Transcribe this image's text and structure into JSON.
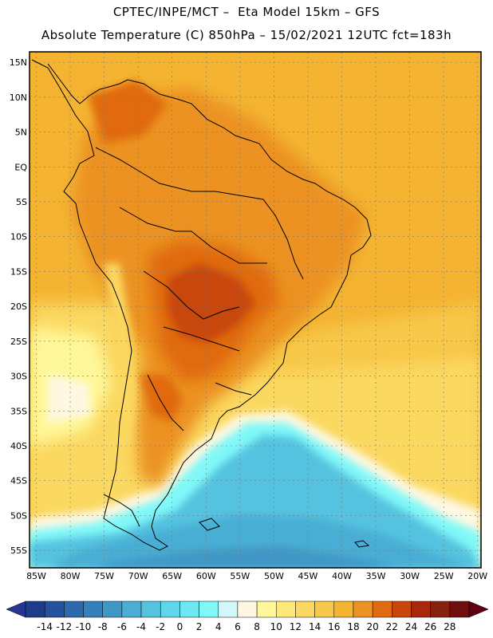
{
  "header": {
    "line1": "CPTEC/INPE/MCT –  Eta Model 15km – GFS",
    "line2": "Absolute Temperature (C) 850hPa – 15/02/2021 12UTC fct=183h"
  },
  "map": {
    "lat_labels": [
      "15N",
      "10N",
      "5N",
      "EQ",
      "5S",
      "10S",
      "15S",
      "20S",
      "25S",
      "30S",
      "35S",
      "40S",
      "45S",
      "50S",
      "55S"
    ],
    "lon_labels": [
      "85W",
      "80W",
      "75W",
      "70W",
      "65W",
      "60W",
      "55W",
      "50W",
      "45W",
      "40W",
      "35W",
      "30W",
      "25W",
      "20W"
    ],
    "lat_range": [
      -57.5,
      16.5
    ],
    "lon_range": [
      -86.0,
      -19.5
    ]
  },
  "colorbar": {
    "labels": [
      "-14",
      "-12",
      "-10",
      "-8",
      "-6",
      "-4",
      "-2",
      "0",
      "2",
      "4",
      "6",
      "8",
      "10",
      "12",
      "14",
      "16",
      "18",
      "20",
      "22",
      "24",
      "26",
      "28"
    ],
    "colors": [
      "#1e3c8c",
      "#24509e",
      "#2d6aad",
      "#3580bb",
      "#3f97c6",
      "#4aaed4",
      "#55c3e0",
      "#60d6ea",
      "#6ce8f2",
      "#80f8f8",
      "#d2f6fa",
      "#fef8e2",
      "#fef89a",
      "#fde878",
      "#fbd860",
      "#f7c84a",
      "#f4b432",
      "#eb9222",
      "#e06a10",
      "#c8460c",
      "#a8280c",
      "#882010",
      "#6e0e0e"
    ]
  }
}
